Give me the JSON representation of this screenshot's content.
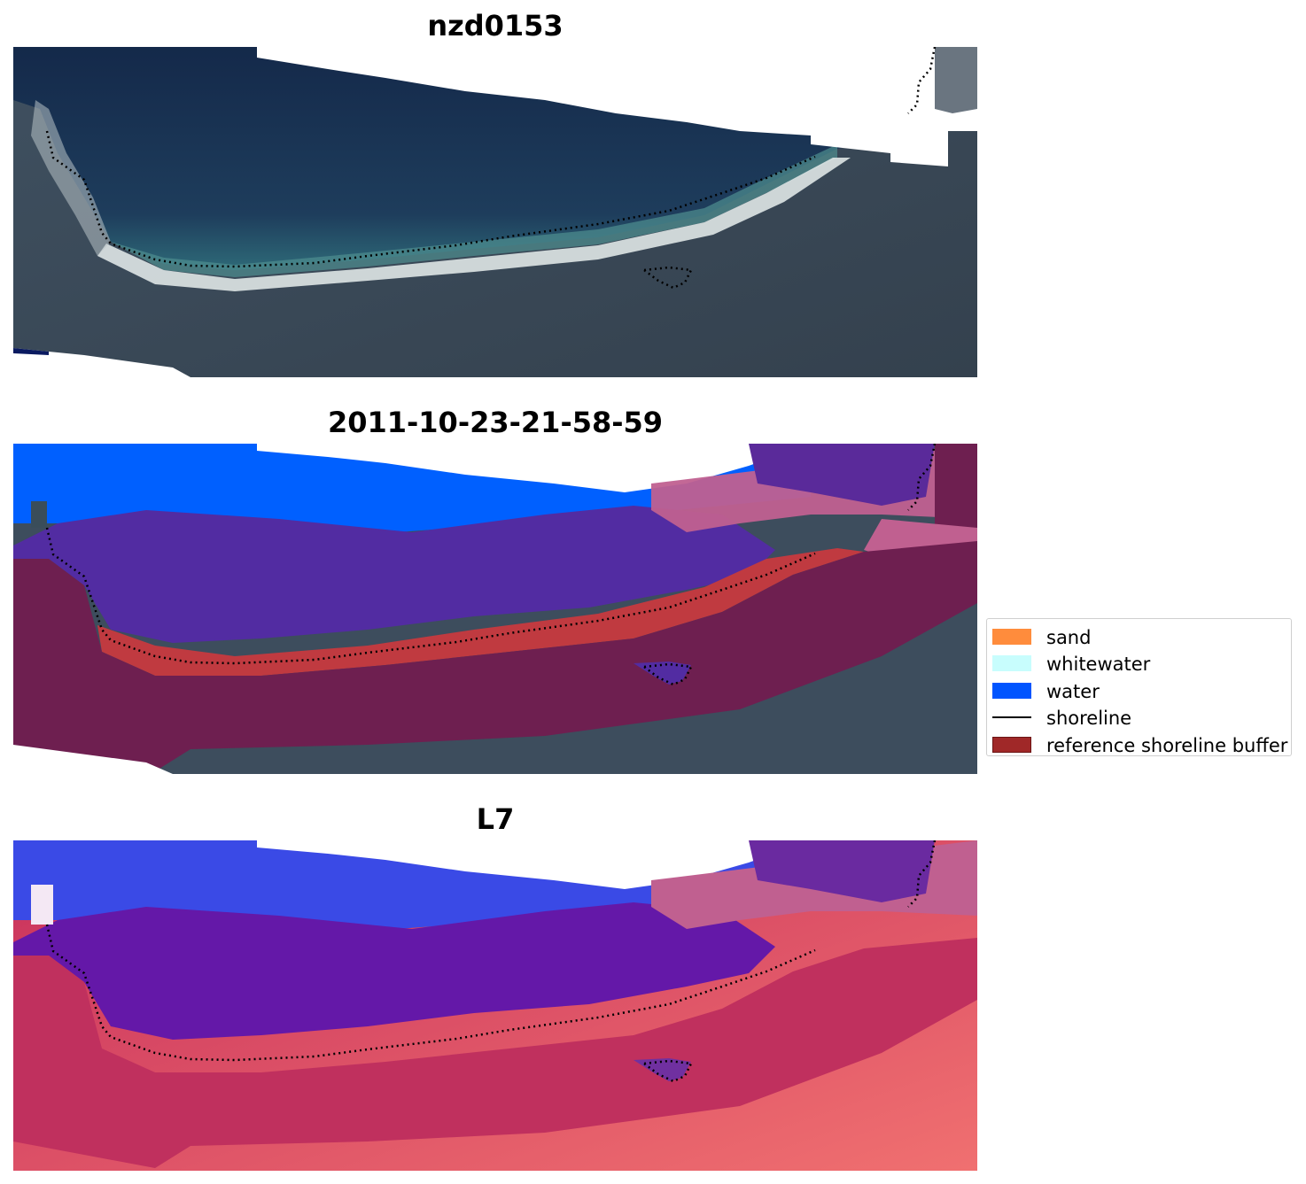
{
  "panels": [
    {
      "title": "nzd0153",
      "view": "rgb-image"
    },
    {
      "title": "2011-10-23-21-58-59",
      "view": "classified-image"
    },
    {
      "title": "L7",
      "view": "index-image"
    }
  ],
  "legend": {
    "items": [
      {
        "label": "sand",
        "color": "#ff8c3c",
        "kind": "patch"
      },
      {
        "label": "whitewater",
        "color": "#c8fdfd",
        "kind": "patch"
      },
      {
        "label": "water",
        "color": "#0055ff",
        "kind": "patch"
      },
      {
        "label": "shoreline",
        "color": "#000000",
        "kind": "line"
      },
      {
        "label": "reference shoreline buffer",
        "color": "#a02828",
        "kind": "patch-outlined"
      }
    ]
  },
  "colors": {
    "ocean_deep": "#17304f",
    "land": "#3c4c5c",
    "beach": "#d8dedf",
    "water_class": "#0060ff",
    "buffer_purple": "#512ba0",
    "buffer_maroon": "#6e1f50",
    "shoreline_red": "#c03a40",
    "pink_band": "#c06090"
  }
}
